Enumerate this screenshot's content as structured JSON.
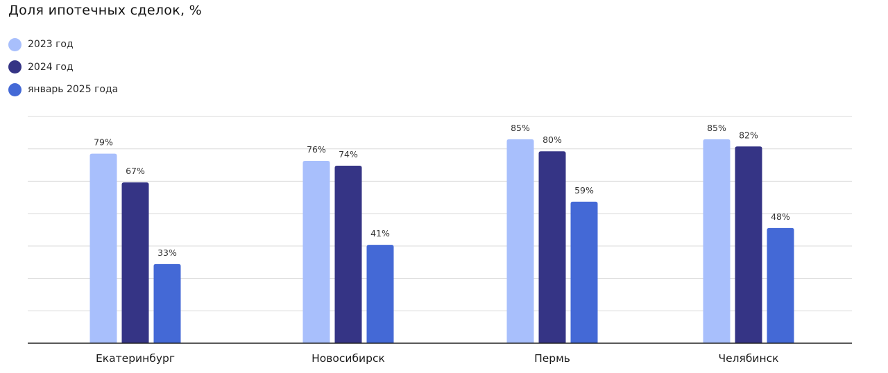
{
  "chart_data": {
    "type": "bar",
    "title": "Доля ипотечных сделок, %",
    "categories": [
      "Екатеринбург",
      "Новосибирск",
      "Пермь",
      "Челябинск"
    ],
    "series": [
      {
        "name": "2023 год",
        "values": [
          79,
          76,
          85,
          85
        ],
        "color": "#a8bffc"
      },
      {
        "name": "2024 год",
        "values": [
          67,
          74,
          80,
          82
        ],
        "color": "#353485"
      },
      {
        "name": "январь 2025 года",
        "values": [
          33,
          41,
          59,
          48
        ],
        "color": "#4469d6"
      }
    ],
    "value_labels": [
      [
        "79%",
        "76%",
        "85%",
        "85%"
      ],
      [
        "67%",
        "74%",
        "80%",
        "82%"
      ],
      [
        "33%",
        "41%",
        "59%",
        "48%"
      ]
    ],
    "xlabel": "",
    "ylabel": "",
    "ylim": [
      0,
      100
    ],
    "grid": true,
    "legend": "top-left",
    "unit": "%"
  }
}
